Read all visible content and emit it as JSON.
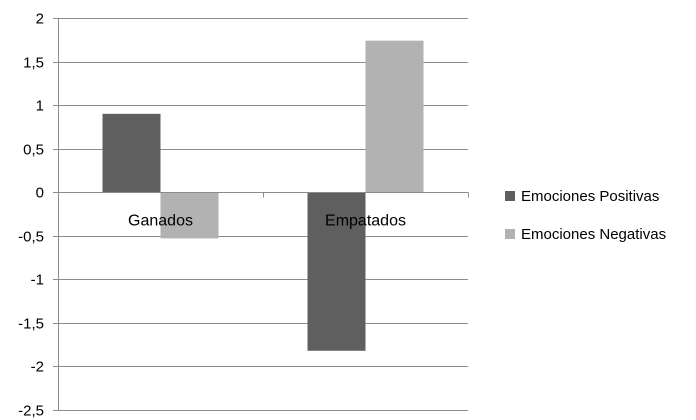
{
  "chart_data": {
    "type": "bar",
    "categories": [
      "Ganados",
      "Empatados"
    ],
    "series": [
      {
        "name": "Emociones Positivas",
        "color": "#5f5f5f",
        "values": [
          0.9,
          -1.82
        ]
      },
      {
        "name": "Emociones Negativas",
        "color": "#b2b2b2",
        "values": [
          -0.53,
          1.74
        ]
      }
    ],
    "ylim": [
      -2.5,
      2
    ],
    "y_ticks": [
      2,
      1.5,
      1,
      0.5,
      0,
      -0.5,
      -1,
      -1.5,
      -2,
      -2.5
    ],
    "y_tick_labels": [
      "2",
      "1,5",
      "1",
      "0,5",
      "0",
      "-0,5",
      "-1",
      "-1,5",
      "-2",
      "-2,5"
    ],
    "grid": true,
    "legend_position": "right",
    "title": "",
    "xlabel": "",
    "ylabel": ""
  }
}
